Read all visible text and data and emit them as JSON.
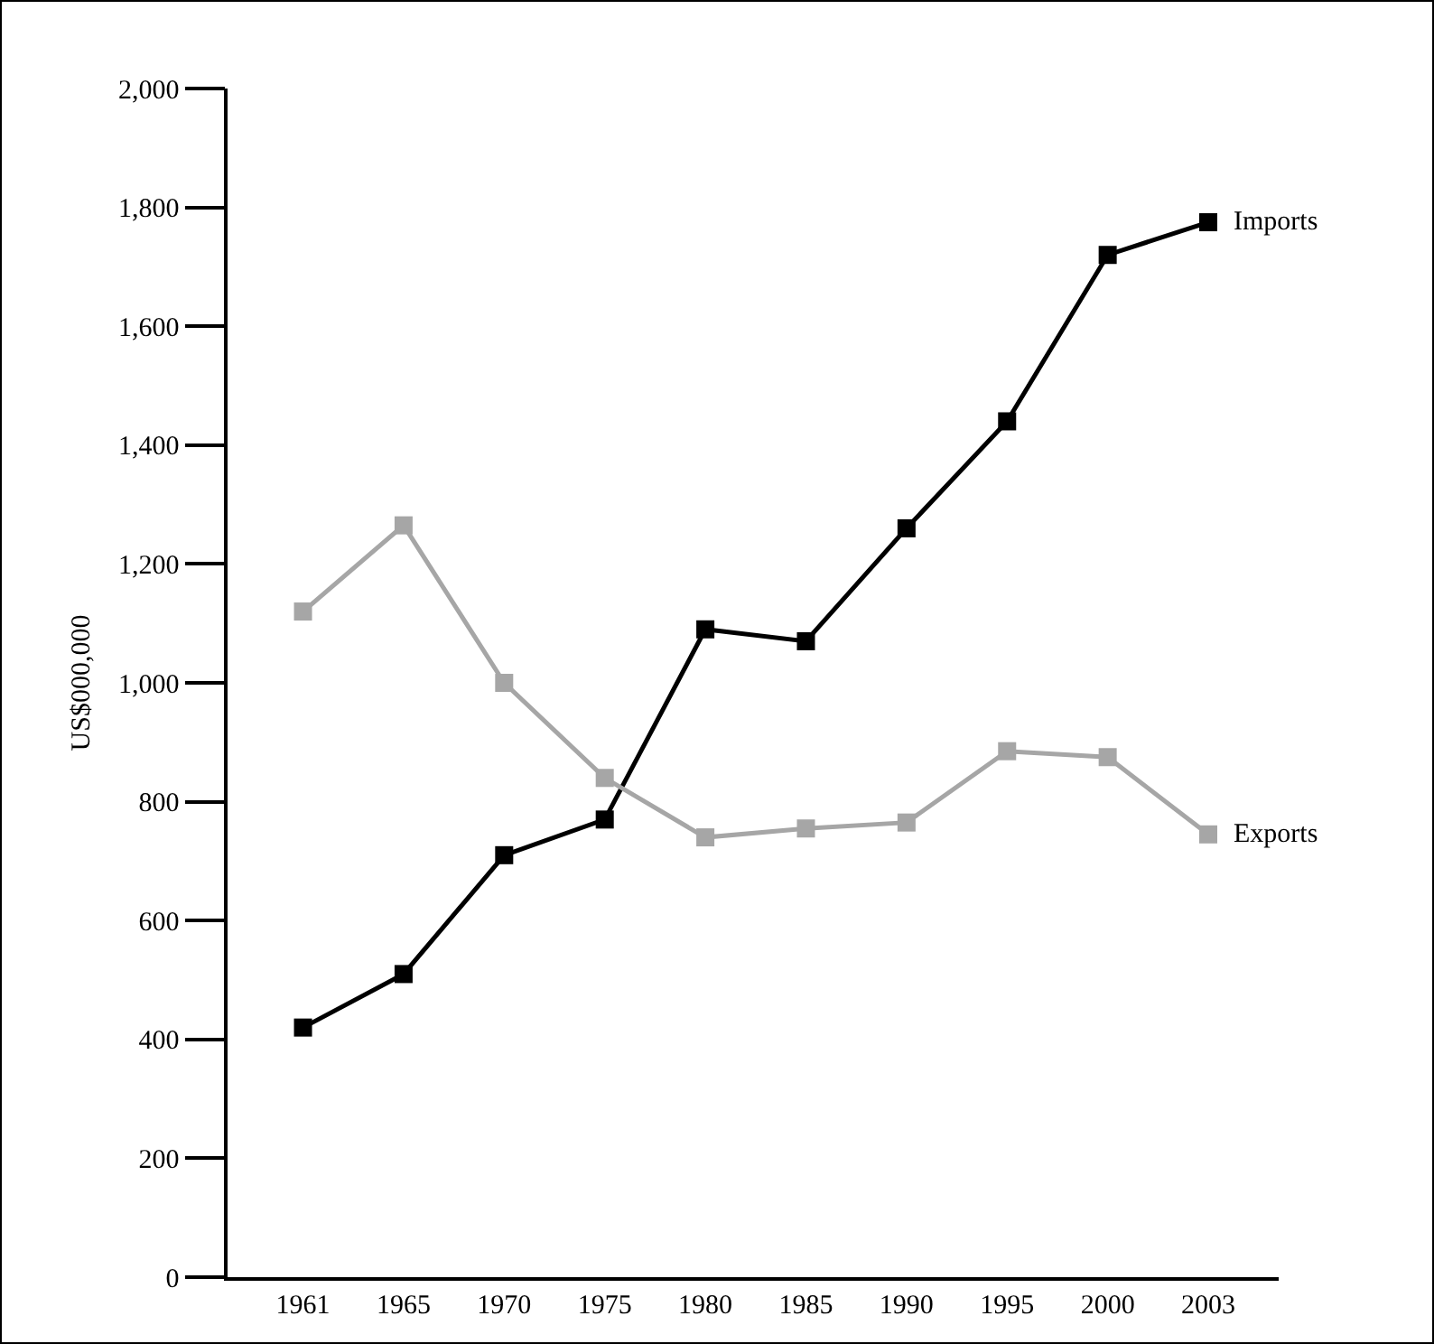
{
  "chart_data": {
    "type": "line",
    "ylabel": "US$000,000",
    "categories": [
      "1961",
      "1965",
      "1970",
      "1975",
      "1980",
      "1985",
      "1990",
      "1995",
      "2000",
      "2003"
    ],
    "series": [
      {
        "name": "Imports",
        "color": "#000000",
        "values": [
          420,
          510,
          710,
          770,
          1090,
          1070,
          1260,
          1440,
          1720,
          1775
        ]
      },
      {
        "name": "Exports",
        "color": "#a6a6a6",
        "values": [
          1120,
          1265,
          1000,
          840,
          740,
          755,
          765,
          885,
          875,
          745
        ]
      }
    ],
    "ylim": [
      0,
      2000
    ],
    "yticks": [
      {
        "value": 0,
        "label": "0"
      },
      {
        "value": 200,
        "label": "200"
      },
      {
        "value": 400,
        "label": "400"
      },
      {
        "value": 600,
        "label": "600"
      },
      {
        "value": 800,
        "label": "800"
      },
      {
        "value": 1000,
        "label": "1,000"
      },
      {
        "value": 1200,
        "label": "1,200"
      },
      {
        "value": 1400,
        "label": "1,400"
      },
      {
        "value": 1600,
        "label": "1,600"
      },
      {
        "value": 1800,
        "label": "1,800"
      },
      {
        "value": 2000,
        "label": "2,000"
      }
    ],
    "grid": false,
    "legend": false,
    "marker": "square",
    "line_style": "solid"
  }
}
